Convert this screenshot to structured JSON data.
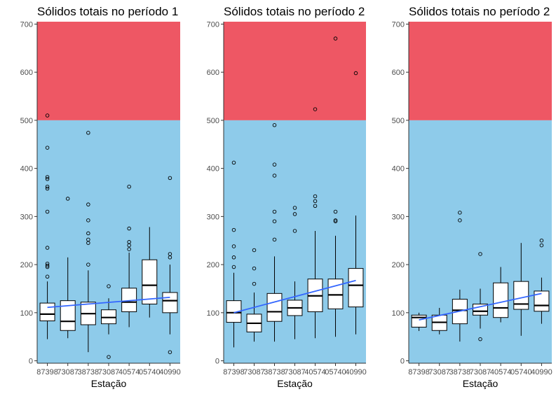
{
  "colors": {
    "danger_zone": "#EE5764",
    "safe_zone": "#8ECBEA",
    "box_fill": "#FFFFFF",
    "trend_line": "#3366FF",
    "axis": "#333333"
  },
  "chart_data": [
    {
      "type": "boxplot",
      "title": "Sólidos totais no período 1",
      "xlabel": "Estação",
      "ylabel": "",
      "ylim": [
        -5,
        705
      ],
      "yticks": [
        0,
        100,
        200,
        300,
        400,
        500,
        600,
        700
      ],
      "threshold": 500,
      "categories": [
        "873987",
        "873987",
        "873987",
        "873987",
        "874057",
        "874067",
        "874099"
      ],
      "category_tick_labels": [
        "87398",
        "73087",
        "38738",
        "73087",
        "40574",
        "05740",
        "40990"
      ],
      "boxes": [
        {
          "min": 45,
          "q1": 83,
          "median": 97,
          "q3": 120,
          "max": 165,
          "outliers": [
            175,
            195,
            198,
            202,
            235,
            310,
            358,
            362,
            378,
            382,
            443,
            510
          ]
        },
        {
          "min": 47,
          "q1": 63,
          "median": 82,
          "q3": 125,
          "max": 215,
          "outliers": [
            337
          ]
        },
        {
          "min": 18,
          "q1": 75,
          "median": 98,
          "q3": 122,
          "max": 188,
          "outliers": [
            200,
            245,
            252,
            265,
            292,
            325,
            474
          ]
        },
        {
          "min": 55,
          "q1": 77,
          "median": 90,
          "q3": 106,
          "max": 130,
          "outliers": [
            8,
            155
          ]
        },
        {
          "min": 70,
          "q1": 102,
          "median": 122,
          "q3": 151,
          "max": 225,
          "outliers": [
            232,
            240,
            247,
            275,
            362
          ]
        },
        {
          "min": 90,
          "q1": 118,
          "median": 157,
          "q3": 210,
          "max": 278,
          "outliers": []
        },
        {
          "min": 55,
          "q1": 100,
          "median": 125,
          "q3": 142,
          "max": 200,
          "outliers": [
            18,
            215,
            222,
            380
          ]
        }
      ],
      "trend": [
        111,
        132
      ]
    },
    {
      "type": "boxplot",
      "title": "Sólidos totais no período 2",
      "xlabel": "Estação",
      "ylabel": "",
      "ylim": [
        -5,
        705
      ],
      "yticks": [
        0,
        100,
        200,
        300,
        400,
        500,
        600,
        700
      ],
      "threshold": 500,
      "categories": [
        "873987",
        "873987",
        "873987",
        "873987",
        "874057",
        "874067",
        "874099"
      ],
      "category_tick_labels": [
        "87398",
        "73087",
        "38738",
        "73087",
        "40574",
        "05740",
        "40990"
      ],
      "boxes": [
        {
          "min": 28,
          "q1": 80,
          "median": 100,
          "q3": 125,
          "max": 183,
          "outliers": [
            195,
            215,
            238,
            272,
            412
          ]
        },
        {
          "min": 40,
          "q1": 60,
          "median": 78,
          "q3": 97,
          "max": 142,
          "outliers": [
            160,
            192,
            230
          ]
        },
        {
          "min": 40,
          "q1": 82,
          "median": 102,
          "q3": 140,
          "max": 217,
          "outliers": [
            252,
            290,
            310,
            385,
            408,
            490
          ]
        },
        {
          "min": 45,
          "q1": 94,
          "median": 110,
          "q3": 126,
          "max": 165,
          "outliers": [
            270,
            305,
            318
          ]
        },
        {
          "min": 47,
          "q1": 102,
          "median": 135,
          "q3": 170,
          "max": 270,
          "outliers": [
            322,
            332,
            342,
            523
          ]
        },
        {
          "min": 50,
          "q1": 108,
          "median": 137,
          "q3": 170,
          "max": 260,
          "outliers": [
            290,
            292,
            310,
            670
          ]
        },
        {
          "min": 55,
          "q1": 112,
          "median": 157,
          "q3": 192,
          "max": 302,
          "outliers": [
            598
          ]
        }
      ],
      "trend": [
        100,
        167
      ]
    },
    {
      "type": "boxplot",
      "title": "Sólidos totais no período 2",
      "xlabel": "Estação",
      "ylabel": "",
      "ylim": [
        -5,
        705
      ],
      "yticks": [
        0,
        100,
        200,
        300,
        400,
        500,
        600,
        700
      ],
      "threshold": 500,
      "categories": [
        "873987",
        "873987",
        "873987",
        "873987",
        "874057",
        "874067",
        "874099"
      ],
      "category_tick_labels": [
        "87398",
        "73087",
        "38738",
        "73087",
        "40574",
        "05740",
        "40990"
      ],
      "boxes": [
        {
          "min": 62,
          "q1": 70,
          "median": 90,
          "q3": 95,
          "max": 100,
          "outliers": []
        },
        {
          "min": 55,
          "q1": 63,
          "median": 80,
          "q3": 95,
          "max": 110,
          "outliers": []
        },
        {
          "min": 40,
          "q1": 77,
          "median": 105,
          "q3": 128,
          "max": 148,
          "outliers": [
            292,
            308
          ]
        },
        {
          "min": 67,
          "q1": 95,
          "median": 103,
          "q3": 118,
          "max": 150,
          "outliers": [
            45,
            222
          ]
        },
        {
          "min": 80,
          "q1": 90,
          "median": 110,
          "q3": 162,
          "max": 195,
          "outliers": []
        },
        {
          "min": 52,
          "q1": 107,
          "median": 118,
          "q3": 165,
          "max": 245,
          "outliers": []
        },
        {
          "min": 77,
          "q1": 103,
          "median": 115,
          "q3": 145,
          "max": 173,
          "outliers": [
            240,
            250
          ]
        }
      ],
      "trend": [
        85,
        140
      ]
    }
  ]
}
